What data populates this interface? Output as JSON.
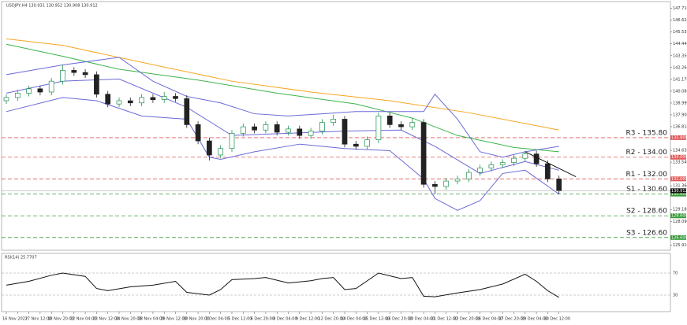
{
  "chart_data": [
    {
      "type": "candlestick",
      "title": "USDJPY,H4 130.931 130.952 130.908 130.912",
      "categories": [
        "16 Nov 2022",
        null,
        "17 Nov 12:00",
        null,
        "18 Nov 20:00",
        null,
        "22 Nov 04:00",
        null,
        "23 Nov 12:00",
        null,
        "24 Nov 20:00",
        null,
        "28 Nov 04:00",
        null,
        "29 Nov 12:00",
        null,
        "30 Nov 20:00",
        null,
        "2 Dec 04:00",
        null,
        "5 Dec 12:00",
        null,
        "6 Dec 20:00",
        null,
        "8 Dec 04:00",
        null,
        "9 Dec 12:00",
        null,
        "12 Dec 20:00",
        null,
        "14 Dec 04:00",
        null,
        "15 Dec 12:00",
        null,
        "16 Dec 20:00",
        null,
        "20 Dec 04:00",
        null,
        "21 Dec 12:00",
        null,
        "22 Dec 20:00",
        null,
        "26 Dec 04:00",
        null,
        "27 Dec 20:00",
        null,
        "29 Dec 04:00",
        null,
        "30 Dec 12:00",
        null
      ],
      "open": [
        139.2,
        139.5,
        139.9,
        140.3,
        140.0,
        141.0,
        142.0,
        141.8,
        141.6,
        139.8,
        138.9,
        139.2,
        139.0,
        139.5,
        139.3,
        139.6,
        139.4,
        137.0,
        135.5,
        134.2,
        134.8,
        136.2,
        136.8,
        136.5,
        137.0,
        136.3,
        136.6,
        136.0,
        136.4,
        137.2,
        137.5,
        135.2,
        135.0,
        135.6,
        137.8,
        137.0,
        136.8,
        137.2,
        131.5,
        131.3,
        131.8,
        132.0,
        132.6,
        133.0,
        133.3,
        133.5,
        133.9,
        134.3,
        133.4,
        132.0
      ],
      "high": [
        139.8,
        140.2,
        140.6,
        140.6,
        141.3,
        142.5,
        142.3,
        142.1,
        141.9,
        140.1,
        139.5,
        139.5,
        139.8,
        139.8,
        140.0,
        139.9,
        139.7,
        137.3,
        135.8,
        135.1,
        136.5,
        137.1,
        137.1,
        137.3,
        137.3,
        136.9,
        136.9,
        136.7,
        137.5,
        137.9,
        137.8,
        135.5,
        135.9,
        138.1,
        138.1,
        137.3,
        137.6,
        137.5,
        131.8,
        132.1,
        132.3,
        132.9,
        133.3,
        133.6,
        133.8,
        134.2,
        134.6,
        134.6,
        133.7,
        132.3
      ],
      "low": [
        138.9,
        139.2,
        139.6,
        139.7,
        139.7,
        140.7,
        141.5,
        141.3,
        139.5,
        138.6,
        138.6,
        138.7,
        138.7,
        139.0,
        139.0,
        139.1,
        136.7,
        135.2,
        133.7,
        133.9,
        134.5,
        135.9,
        136.2,
        136.2,
        136.0,
        136.0,
        135.7,
        135.7,
        136.1,
        136.9,
        134.9,
        134.7,
        134.7,
        135.3,
        136.7,
        136.5,
        136.5,
        131.2,
        130.6,
        131.0,
        131.5,
        131.7,
        132.3,
        132.7,
        133.0,
        133.2,
        133.6,
        133.1,
        131.7,
        130.6
      ],
      "close": [
        139.5,
        139.9,
        140.3,
        140.0,
        141.0,
        142.0,
        141.8,
        141.6,
        139.8,
        138.9,
        139.2,
        139.0,
        139.5,
        139.3,
        139.6,
        139.4,
        137.0,
        135.5,
        134.2,
        134.8,
        136.2,
        136.8,
        136.5,
        137.0,
        136.3,
        136.6,
        136.0,
        136.4,
        137.2,
        137.5,
        135.2,
        135.0,
        135.6,
        137.8,
        137.0,
        136.8,
        137.2,
        131.5,
        131.3,
        131.8,
        132.0,
        132.6,
        133.0,
        133.3,
        133.5,
        133.9,
        134.3,
        133.4,
        132.0,
        130.9
      ],
      "up_color": "#1e8f4e",
      "down_color": "#222222",
      "ylim": [
        125.5,
        147.9
      ],
      "yticks": [
        {
          "value": 147.71,
          "label": "147.710"
        },
        {
          "value": 146.62,
          "label": "146.620"
        },
        {
          "value": 145.53,
          "label": "145.530"
        },
        {
          "value": 144.44,
          "label": "144.440"
        },
        {
          "value": 143.35,
          "label": "143.350"
        },
        {
          "value": 142.26,
          "label": "142.260"
        },
        {
          "value": 141.17,
          "label": "141.170"
        },
        {
          "value": 140.08,
          "label": "140.080"
        },
        {
          "value": 138.99,
          "label": "138.990"
        },
        {
          "value": 137.9,
          "label": "137.900"
        },
        {
          "value": 136.81,
          "label": "136.810"
        },
        {
          "value": 134.63,
          "label": "134.630"
        },
        {
          "value": 133.54,
          "label": "133.540"
        },
        {
          "value": 131.36,
          "label": "131.360"
        },
        {
          "value": 129.18,
          "label": "129.180"
        },
        {
          "value": 128.09,
          "label": "128.090"
        },
        {
          "value": 125.91,
          "label": "125.910"
        }
      ],
      "overlays": [
        {
          "color": "#f5a623",
          "x": [
            0,
            5,
            14,
            20,
            27,
            34,
            41,
            49
          ],
          "values": [
            144.9,
            144.3,
            142.3,
            141.0,
            140.0,
            139.2,
            138.1,
            136.5
          ]
        },
        {
          "color": "#3cb44b",
          "x": [
            0,
            5,
            10,
            17,
            24,
            31,
            36,
            40,
            45,
            49
          ],
          "values": [
            144.4,
            143.3,
            142.1,
            141.1,
            139.9,
            138.9,
            137.6,
            136.0,
            134.9,
            134.5
          ]
        },
        {
          "color": "#6a6ad8",
          "x": [
            0,
            5,
            10,
            13,
            16,
            19,
            22,
            25,
            28,
            31,
            34,
            37,
            38,
            40,
            42,
            44,
            46,
            49
          ],
          "values": [
            141.6,
            142.5,
            143.2,
            141.0,
            139.6,
            139.0,
            138.0,
            137.8,
            138.0,
            138.2,
            138.2,
            138.2,
            139.8,
            137.5,
            134.5,
            134.0,
            134.5,
            135.0
          ]
        },
        {
          "color": "#6a6ad8",
          "x": [
            0,
            5,
            10,
            16,
            20,
            25,
            30,
            35,
            38,
            42,
            46,
            49
          ],
          "values": [
            139.9,
            141.0,
            141.2,
            138.6,
            136.0,
            136.2,
            136.4,
            136.5,
            135.0,
            132.5,
            133.6,
            132.8
          ]
        },
        {
          "color": "#6a6ad8",
          "x": [
            0,
            5,
            8,
            12,
            16,
            18,
            19,
            22,
            26,
            30,
            34,
            37,
            38,
            40,
            42,
            44,
            46,
            49
          ],
          "values": [
            138.2,
            139.5,
            139.2,
            137.8,
            137.5,
            134.0,
            133.8,
            134.5,
            135.2,
            134.8,
            134.6,
            132.0,
            130.2,
            129.1,
            130.0,
            132.5,
            132.8,
            130.6
          ]
        }
      ],
      "trendline": {
        "color": "#111111",
        "x": [
          46,
          50.5
        ],
        "values": [
          134.5,
          132.2
        ]
      },
      "levels": [
        {
          "label": "R3 - 135.80",
          "value": 135.8,
          "tag": "135.800",
          "color": "#e05a5a"
        },
        {
          "label": "R2 - 134.00",
          "value": 134.0,
          "tag": "134.000",
          "color": "#e05a5a"
        },
        {
          "label": "R1 - 132.00",
          "value": 132.0,
          "tag": "132.000",
          "color": "#e05a5a"
        },
        {
          "label": "S1 - 130.60",
          "value": 130.6,
          "tag": "130.600",
          "color": "#3a9a3a"
        },
        {
          "label": "S2 - 128.60",
          "value": 128.6,
          "tag": "128.600",
          "color": "#3a9a3a"
        },
        {
          "label": "S3 - 126.60",
          "value": 126.6,
          "tag": "126.600",
          "color": "#3a9a3a"
        }
      ],
      "last_price": {
        "value": 130.912,
        "label": "130.912"
      }
    },
    {
      "type": "line",
      "title": "RSI(14) 25.7707",
      "color": "#111111",
      "x": [
        0,
        2,
        4,
        5,
        7,
        8,
        9,
        11,
        13,
        15,
        16,
        18,
        19,
        20,
        22,
        23,
        25,
        27,
        28,
        29,
        30,
        31,
        33,
        35,
        36,
        37,
        38,
        40,
        42,
        44,
        46,
        47,
        48,
        49
      ],
      "values": [
        48,
        55,
        66,
        70,
        64,
        42,
        38,
        45,
        48,
        55,
        35,
        30,
        40,
        58,
        60,
        62,
        52,
        56,
        60,
        62,
        40,
        42,
        70,
        60,
        62,
        28,
        27,
        34,
        40,
        50,
        68,
        55,
        38,
        25.77
      ],
      "ylim": [
        0,
        100
      ],
      "yticks": [
        70,
        30
      ]
    }
  ]
}
